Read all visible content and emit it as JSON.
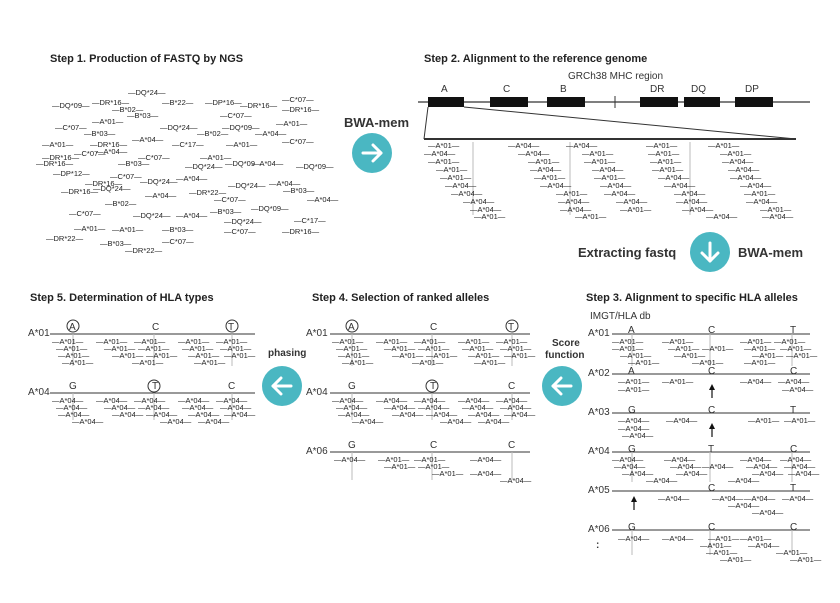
{
  "steps": {
    "step1": "Step 1. Production of FASTQ by NGS",
    "step2": "Step 2. Alignment to the reference genome",
    "step3": "Step 3. Alignment to specific HLA alleles",
    "step4": "Step 4. Selection of ranked alleles",
    "step5": "Step 5. Determination of HLA types"
  },
  "arrows": {
    "bwa_mem_1": "BWA-mem",
    "extracting_fastq": "Extracting fastq",
    "bwa_mem_2": "BWA-mem",
    "score_function_1": "Score",
    "score_function_2": "function",
    "phasing": "phasing"
  },
  "reference": {
    "region_label": "GRCh38 MHC region",
    "genes": [
      "A",
      "C",
      "B",
      "DR",
      "DQ",
      "DP"
    ]
  },
  "db_label": "IMGT/HLA db",
  "step1_reads": [
    "—DQ*24—",
    "—DQ*09—",
    "—DR*16—",
    "—B*22—",
    "—DP*16—",
    "—DR*16—",
    "—C*07—",
    "—DR*16—",
    "—B*02—",
    "—B*03—",
    "—C*07—",
    "—C*07—",
    "—A*01—",
    "—DQ*24—",
    "—DQ*09—",
    "—A*01—",
    "—B*03—",
    "—B*02—",
    "—A*04—",
    "—A*04—",
    "—A*01—",
    "—DR*16—",
    "—A*04—",
    "—C*17—",
    "—A*01—",
    "—C*07—",
    "—C*07—",
    "—DR*16—",
    "—C*07—",
    "—DR*16—",
    "—B*03—",
    "—DQ*09—",
    "—A*01—",
    "—A*04—",
    "—DQ*09—",
    "—DQ*24—",
    "—DP*12—",
    "—C*07—",
    "—A*04—",
    "—DR*16—",
    "—DQ*24—",
    "—DQ*24—",
    "—A*04—",
    "—DR*16—",
    "—DQ*24—",
    "—DR*22—",
    "—B*03—",
    "—A*04—",
    "—B*02—",
    "—C*07—",
    "—A*04—",
    "—C*07—",
    "—DQ*24—",
    "—A*04—",
    "—B*03—",
    "—DQ*09—",
    "—DQ*24—",
    "—C*17—",
    "—A*01—",
    "—A*01—",
    "—B*03—",
    "—C*07—",
    "—DR*16—",
    "—DR*22—",
    "—B*03—",
    "—C*07—",
    "—DR*22—"
  ],
  "loci_labels": {
    "step3": [
      "A*01",
      "A*02",
      "A*03",
      "A*04",
      "A*05",
      "A*06",
      ":"
    ],
    "step4": [
      "A*01",
      "A*04",
      "A*06"
    ],
    "step5": [
      "A*01",
      "A*04"
    ]
  },
  "allele_tags": {
    "read_a01": "—A*01—",
    "read_a04": "—A*04—"
  },
  "snp_letters": {
    "row_a01": [
      "A",
      "C",
      "T"
    ],
    "row_a02": [
      "A",
      "C",
      "C"
    ],
    "row_a03": [
      "G",
      "C",
      "T"
    ],
    "row_a04": [
      "G",
      "T",
      "C"
    ],
    "row_a05": [
      "C",
      "T"
    ],
    "row_a06": [
      "G",
      "C",
      "C"
    ],
    "step4_a01": [
      "A",
      "C",
      "T"
    ],
    "step4_a04": [
      "G",
      "T",
      "C"
    ],
    "step4_a06": [
      "G",
      "C",
      "C"
    ],
    "step5_a01": [
      "A",
      "C",
      "T"
    ],
    "step5_a04": [
      "G",
      "T",
      "C"
    ]
  },
  "colors": {
    "accent": "#4ab7c2",
    "gene_block": "#111111",
    "line": "#333333"
  }
}
